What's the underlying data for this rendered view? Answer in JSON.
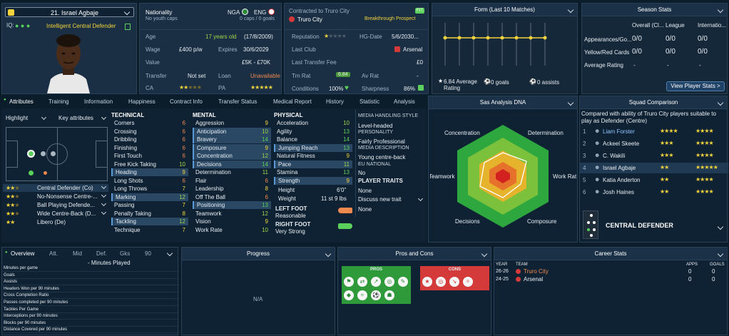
{
  "player": {
    "number_name": "21. Israel Agbaje",
    "role": "Intelligent Central Defender",
    "nationality_label": "Nationality",
    "no_youth_caps": "No youth caps",
    "nga": "NGA",
    "eng": "ENG",
    "caps": "0 caps / 0 goals",
    "contract_label": "Contracted to Truro City",
    "club": "Truro City",
    "prospect": "Breakthrough Prospect",
    "fit_badge": "FIT",
    "iq": "IQ:"
  },
  "info": {
    "age_label": "Age",
    "age_value": "17 years old",
    "dob": "(17/8/2009)",
    "wage_label": "Wage",
    "wage_value": "£400 p/w",
    "expires_label": "Expires",
    "expires_value": "30/6/2029",
    "value_label": "Value",
    "value_value": "£5K - £70K",
    "transfer_label": "Transfer",
    "transfer_value": "Not set",
    "loan_label": "Loan",
    "loan_value": "Unavailable",
    "ca_label": "CA",
    "pa_label": "PA"
  },
  "club_info": {
    "reputation_label": "Reputation",
    "hg_label": "HG-Date",
    "hg_value": "5/6/2030...",
    "last_club_label": "Last Club",
    "last_club_value": "Arsenal",
    "last_fee_label": "Last Transfer Fee",
    "last_fee_value": "£0",
    "trn_label": "Trn Rat",
    "trn_value": "6.84",
    "av_label": "Av Rat",
    "av_value": "-",
    "cond_label": "Conditions",
    "cond_value": "100%",
    "sharp_label": "Sharpness",
    "sharp_value": "86%"
  },
  "form": {
    "title": "Form (Last 10 Matches)",
    "avg": "6.84 Average Rating",
    "goals": "0 goals",
    "assists": "0 assists"
  },
  "season": {
    "title": "Season Stats",
    "col1": "Overall (Cl...",
    "col2": "League",
    "col3": "Internatio...",
    "r1": "Appearances/Go...",
    "r2": "Yellow/Red Cards",
    "r3": "Average Rating",
    "v1": "0/0",
    "v2": "0/0",
    "v3": "-",
    "button": "View Player Stats >"
  },
  "tabs": [
    "Attributes",
    "Training",
    "Information",
    "Happiness",
    "Contract Info",
    "Transfer Status",
    "Medical Report",
    "History",
    "Statistic",
    "Analysis"
  ],
  "left": {
    "highlight": "Highlight",
    "key_attr": "Key attributes"
  },
  "roles": [
    "Central Defender (Co)",
    "No-Nonsense Centre-...",
    "Ball Playing Defende...",
    "Wide Centre-Back (D...",
    "Libero (De)"
  ],
  "technical": {
    "title": "TECHNICAL",
    "items": [
      [
        "Corners",
        "6"
      ],
      [
        "Crossing",
        "6"
      ],
      [
        "Dribbling",
        "6"
      ],
      [
        "Finishing",
        "6"
      ],
      [
        "First Touch",
        "6"
      ],
      [
        "Free Kick Taking",
        "10"
      ],
      [
        "Heading",
        "9"
      ],
      [
        "Long Shots",
        "6"
      ],
      [
        "Long Throws",
        "7"
      ],
      [
        "Marking",
        "12"
      ],
      [
        "Passing",
        "7"
      ],
      [
        "Penalty Taking",
        "8"
      ],
      [
        "Tackling",
        "12"
      ],
      [
        "Technique",
        "7"
      ]
    ]
  },
  "mental": {
    "title": "MENTAL",
    "items": [
      [
        "Aggression",
        "9"
      ],
      [
        "Anticipation",
        "10"
      ],
      [
        "Bravery",
        "14"
      ],
      [
        "Composure",
        "9"
      ],
      [
        "Concentration",
        "12"
      ],
      [
        "Decisions",
        "14"
      ],
      [
        "Determination",
        "11"
      ],
      [
        "Flair",
        "6"
      ],
      [
        "Leadership",
        "8"
      ],
      [
        "Off The Ball",
        "6"
      ],
      [
        "Positioning",
        "13"
      ],
      [
        "Teamwork",
        "12"
      ],
      [
        "Vision",
        "9"
      ],
      [
        "Work Rate",
        "10"
      ]
    ]
  },
  "physical": {
    "title": "PHYSICAL",
    "items": [
      [
        "Acceleration",
        "10"
      ],
      [
        "Agility",
        "13"
      ],
      [
        "Balance",
        "14"
      ],
      [
        "Jumping Reach",
        "13"
      ],
      [
        "Natural Fitness",
        "9"
      ],
      [
        "Pace",
        "11"
      ],
      [
        "Stamina",
        "13"
      ],
      [
        "Strength",
        "9"
      ]
    ],
    "height_label": "Height",
    "height": "6'0\"",
    "weight_label": "Weight",
    "weight": "11 st 9 lbs",
    "left_foot_label": "LEFT FOOT",
    "left_foot": "Reasonable",
    "right_foot_label": "RIGHT FOOT",
    "right_foot": "Very Strong"
  },
  "media": {
    "t1": "MEDIA HANDLING STYLE",
    "v1": "Level-headed",
    "t2": "PERSONALITY",
    "v2": "Fairly Professional",
    "t3": "MEDIA DESCRIPTION",
    "v3": "Young centre-back",
    "t4": "EU NATIONAL",
    "v4": "No",
    "t5": "PLAYER TRAITS",
    "v5": "None",
    "v6": "Discuss new trait",
    "v7": "None"
  },
  "dna": {
    "title": "Sas Analysis DNA",
    "labels": [
      "Concentration",
      "Determination",
      "Work Rate",
      "Composure",
      "Decisions",
      "Teamwork"
    ]
  },
  "squad": {
    "title": "Squad Comparison",
    "desc": "Compared with ability of Truro City players suitable to play as Defender (Centre)",
    "rows": [
      [
        "1",
        "Liam Forster"
      ],
      [
        "2",
        "Ackeel Skeete"
      ],
      [
        "3",
        "C. Wakili"
      ],
      [
        "4",
        "Israel Agbaje"
      ],
      [
        "5",
        "Katia Anderton"
      ],
      [
        "6",
        "Josh Haines"
      ]
    ],
    "position": "CENTRAL DEFENDER"
  },
  "bottom_tabs": [
    "Overview",
    "Att.",
    "Mid",
    "Def.",
    "Gks",
    "90"
  ],
  "stats": {
    "minutes": "- Minutes Played",
    "rows": [
      "Minutes per game",
      "Goals",
      "Assists",
      "Headers Won per 90 minutes",
      "Cross Completion Ratio",
      "Passes completed per 90 minutes",
      "Tackles Per Game",
      "Interceptions per 90 minutes",
      "Blocks per 90 minutes",
      "Distance Covered per 90 minutes"
    ]
  },
  "progress": {
    "title": "Progress",
    "na": "N/A"
  },
  "proscons": {
    "title": "Pros and Cons",
    "pros": "PROS",
    "cons": "CONS"
  },
  "career": {
    "title": "Career Stats",
    "year": "YEAR",
    "team": "TEAM",
    "apps": "APPS",
    "goals": "GOALS",
    "rows": [
      [
        "26-26",
        "Truro City",
        "0",
        "0"
      ],
      [
        "24-25",
        "Arsenal",
        "0",
        "0"
      ]
    ]
  },
  "colors": {
    "accent": "#f2d33b",
    "green": "#5bd15b",
    "red": "#ef4e4e",
    "panel": "#15283a"
  },
  "form_values": [
    6.84,
    6.84,
    6.84,
    6.84,
    6.84,
    6.84,
    6.84,
    6.84
  ]
}
